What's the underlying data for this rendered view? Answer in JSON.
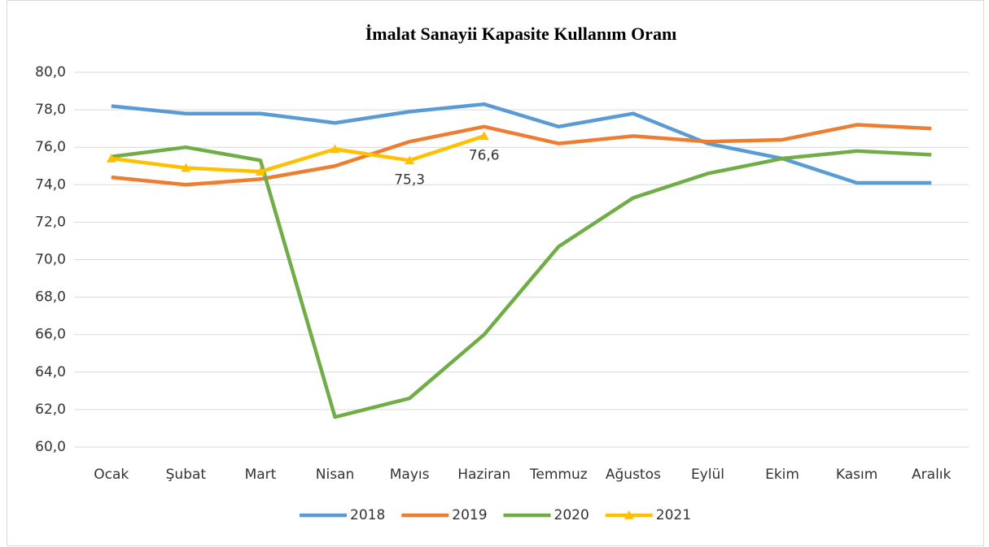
{
  "chart_data": {
    "type": "line",
    "title": "İmalat Sanayii Kapasite Kullanım Oranı",
    "categories": [
      "Ocak",
      "Şubat",
      "Mart",
      "Nisan",
      "Mayıs",
      "Haziran",
      "Temmuz",
      "Ağustos",
      "Eylül",
      "Ekim",
      "Kasım",
      "Aralık"
    ],
    "series": [
      {
        "name": "2018",
        "color": "#5b9bd5",
        "values": [
          78.2,
          77.8,
          77.8,
          77.3,
          77.9,
          78.3,
          77.1,
          77.8,
          76.2,
          75.4,
          74.1,
          74.1
        ]
      },
      {
        "name": "2019",
        "color": "#ed7d31",
        "values": [
          74.4,
          74.0,
          74.3,
          75.0,
          76.3,
          77.1,
          76.2,
          76.6,
          76.3,
          76.4,
          77.2,
          77.0
        ]
      },
      {
        "name": "2020",
        "color": "#70ad47",
        "values": [
          75.5,
          76.0,
          75.3,
          61.6,
          62.6,
          66.0,
          70.7,
          73.3,
          74.6,
          75.4,
          75.8,
          75.6
        ]
      },
      {
        "name": "2021",
        "color": "#ffc000",
        "marker": "triangle",
        "values": [
          75.4,
          74.9,
          74.7,
          75.9,
          75.3,
          76.6,
          null,
          null,
          null,
          null,
          null,
          null
        ],
        "value_labels": [
          null,
          null,
          null,
          null,
          "75,3",
          "76,6",
          null,
          null,
          null,
          null,
          null,
          null
        ]
      }
    ],
    "ylim": [
      60,
      80
    ],
    "yticks": [
      {
        "value": 60,
        "label": "60,0"
      },
      {
        "value": 62,
        "label": "62,0"
      },
      {
        "value": 64,
        "label": "64,0"
      },
      {
        "value": 66,
        "label": "66,0"
      },
      {
        "value": 68,
        "label": "68,0"
      },
      {
        "value": 70,
        "label": "70,0"
      },
      {
        "value": 72,
        "label": "72,0"
      },
      {
        "value": 74,
        "label": "74,0"
      },
      {
        "value": 76,
        "label": "76,0"
      },
      {
        "value": 78,
        "label": "78,0"
      },
      {
        "value": 80,
        "label": "80,0"
      }
    ],
    "grid": true,
    "legend": "bottom"
  }
}
